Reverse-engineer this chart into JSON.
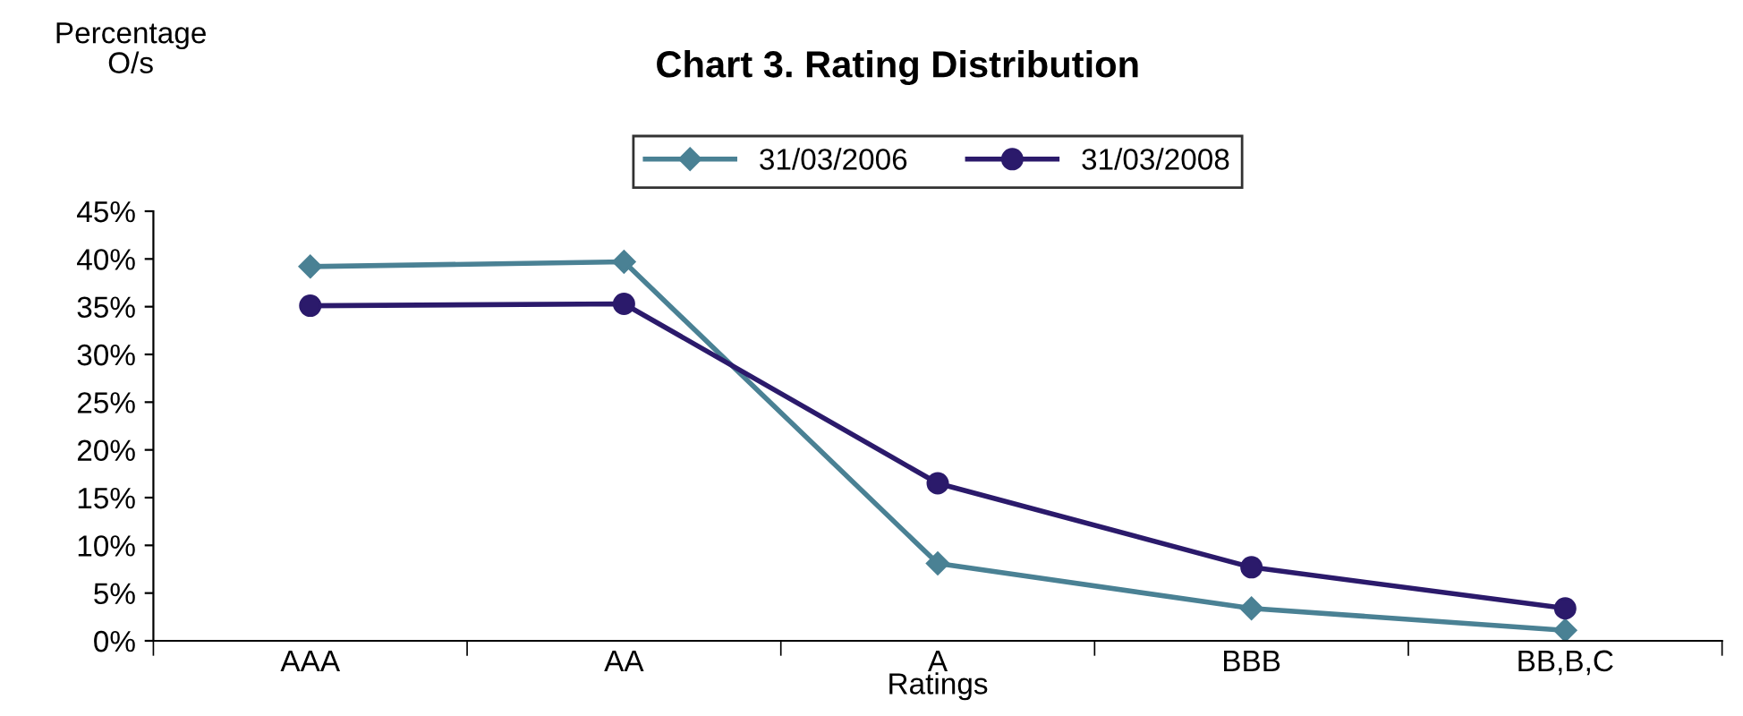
{
  "chart_data": {
    "type": "line",
    "title": "Chart 3. Rating Distribution",
    "ylabel": "Percentage O/s",
    "xlabel": "Ratings",
    "categories": [
      "AAA",
      "AA",
      "A",
      "BBB",
      "BB,B,C"
    ],
    "series": [
      {
        "name": "31/03/2006",
        "color": "#4a8194",
        "marker": "diamond",
        "values": [
          39.2,
          39.7,
          8.1,
          3.4,
          1.1
        ]
      },
      {
        "name": "31/03/2008",
        "color": "#2b1a6b",
        "marker": "circle",
        "values": [
          35.1,
          35.3,
          16.5,
          7.7,
          3.4
        ]
      }
    ],
    "ylim": [
      0,
      45
    ],
    "yticks": [
      {
        "value": 0,
        "label": "0%"
      },
      {
        "value": 5,
        "label": "5%"
      },
      {
        "value": 10,
        "label": "10%"
      },
      {
        "value": 15,
        "label": "15%"
      },
      {
        "value": 20,
        "label": "20%"
      },
      {
        "value": 25,
        "label": "25%"
      },
      {
        "value": 30,
        "label": "30%"
      },
      {
        "value": 35,
        "label": "35%"
      },
      {
        "value": 40,
        "label": "40%"
      },
      {
        "value": 45,
        "label": "45%"
      }
    ],
    "grid": false,
    "legend": "top",
    "line_style": "solid"
  }
}
